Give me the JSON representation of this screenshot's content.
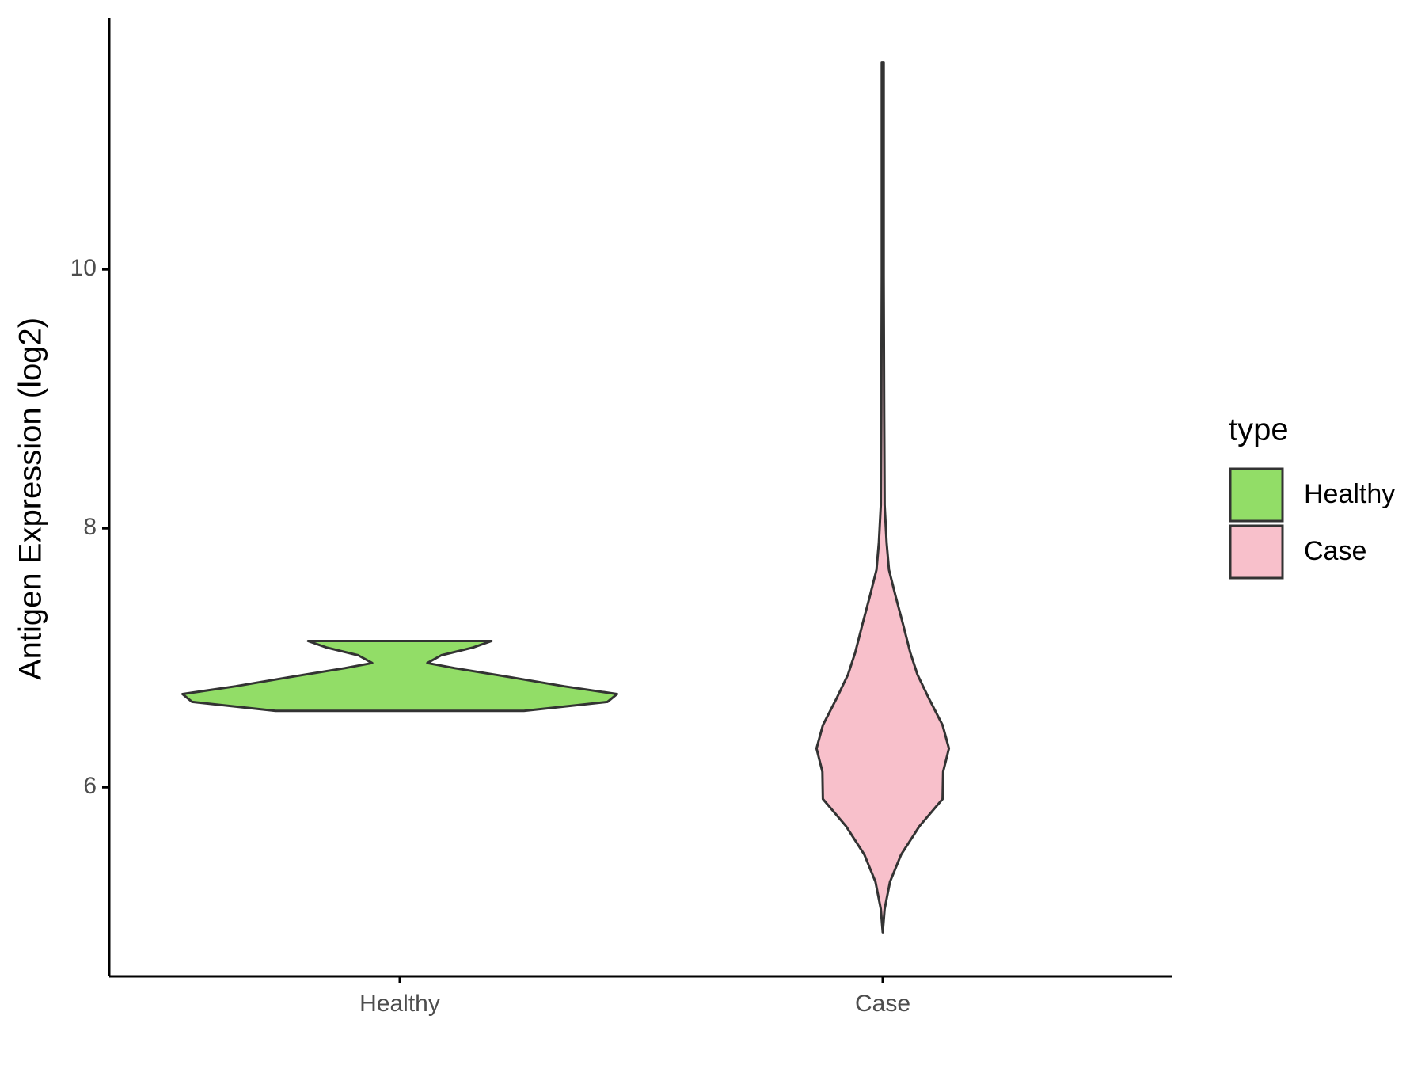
{
  "chart_data": {
    "type": "violin",
    "y_label": "Antigen Expression (log2)",
    "categories": [
      "Healthy",
      "Case"
    ],
    "ylim": [
      4.54,
      11.94
    ],
    "yticks": [
      6,
      8,
      10
    ],
    "legend_title": "type",
    "legend_position": "right",
    "series": [
      {
        "name": "Healthy",
        "color": "#92dd67",
        "y": [
          6.59,
          6.66,
          6.72,
          6.78,
          6.85,
          6.92,
          6.96,
          7.02,
          7.08,
          7.13
        ],
        "width": [
          0.257,
          0.43,
          0.45,
          0.34,
          0.23,
          0.114,
          0.057,
          0.086,
          0.152,
          0.19
        ]
      },
      {
        "name": "Case",
        "color": "#f8c0cb",
        "y": [
          4.88,
          5.06,
          5.27,
          5.48,
          5.7,
          5.91,
          6.12,
          6.3,
          6.48,
          6.69,
          6.87,
          7.04,
          7.26,
          7.47,
          7.68,
          7.89,
          8.18,
          8.89,
          9.95,
          11.6
        ],
        "width": [
          0,
          0.004,
          0.015,
          0.038,
          0.076,
          0.124,
          0.125,
          0.137,
          0.124,
          0.095,
          0.072,
          0.057,
          0.042,
          0.027,
          0.013,
          0.008,
          0.004,
          0.003,
          0.002,
          0.002
        ]
      }
    ]
  }
}
